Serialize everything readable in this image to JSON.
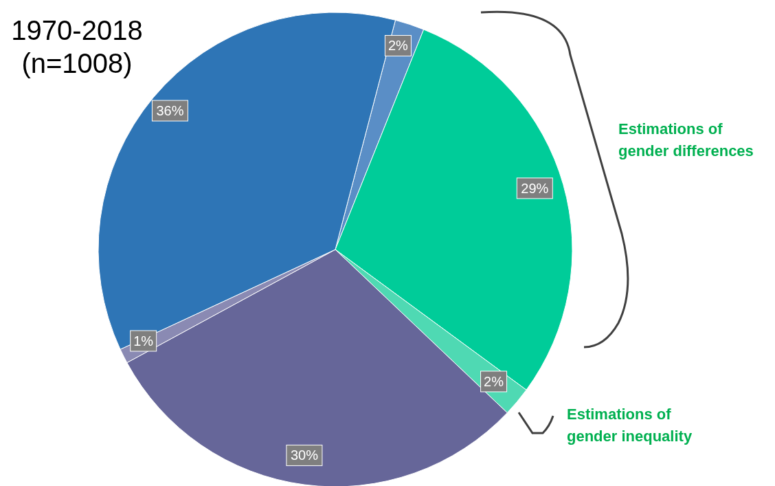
{
  "chart_data": {
    "type": "pie",
    "title": "1970-2018\n(n=1008)",
    "categories": [
      null,
      null,
      null,
      null,
      null,
      null
    ],
    "values": [
      2,
      29,
      2,
      30,
      1,
      36
    ],
    "value_labels": [
      "2%",
      "29%",
      "2%",
      "30%",
      "1%",
      "36%"
    ],
    "colors": [
      "#5a8ec6",
      "#00cc99",
      "#4fd9b3",
      "#666699",
      "#8a8ab3",
      "#2e75b6"
    ],
    "annotations": [
      "Estimations of gender differences",
      "Estimations of gender inequality"
    ]
  }
}
